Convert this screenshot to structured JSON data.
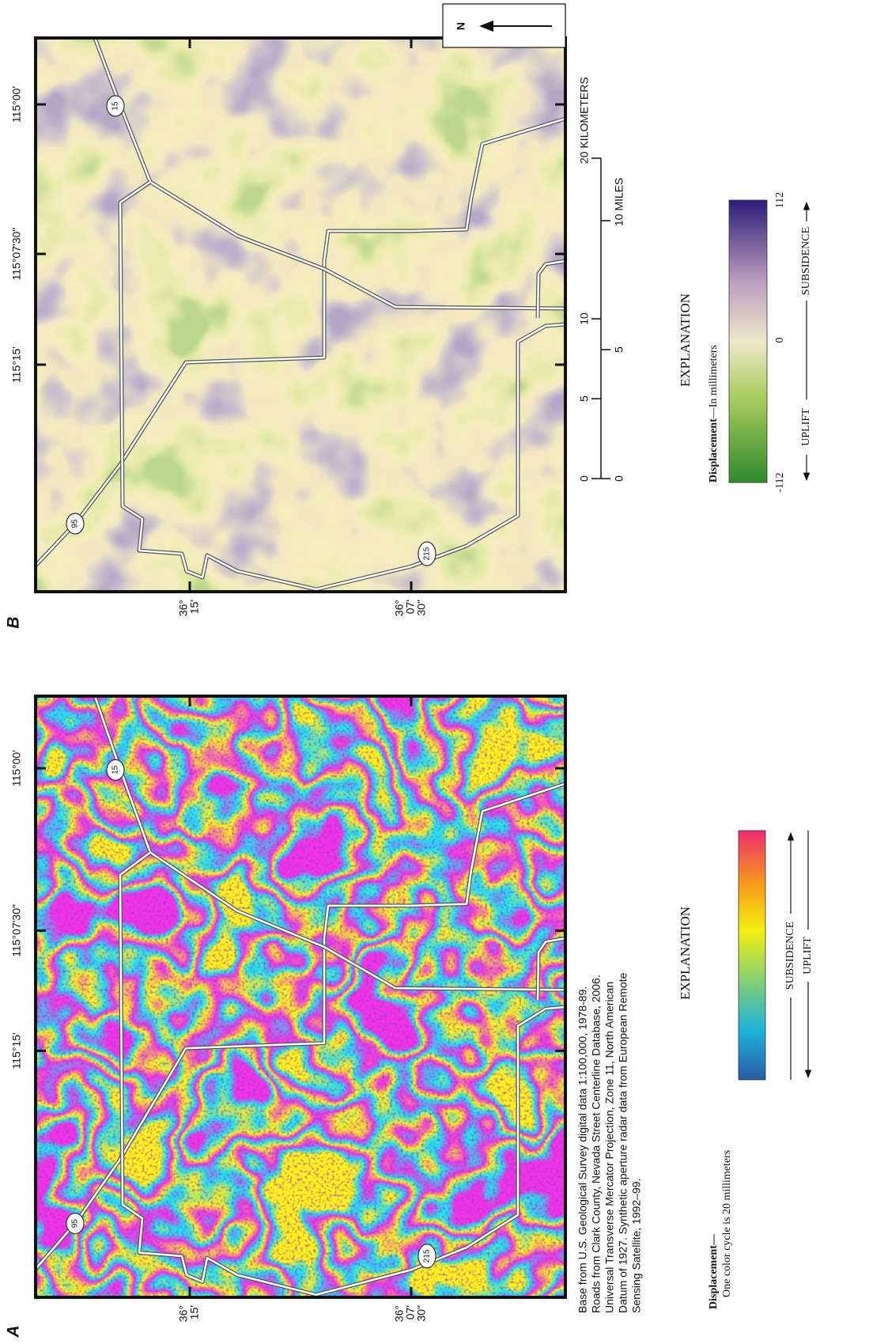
{
  "panels": [
    {
      "label": "A",
      "longitude_labels": [
        "115°15'",
        "115°07'30\"",
        "115°00'"
      ],
      "latitude_labels": [
        [
          "36°",
          "15'"
        ],
        [
          "36°",
          "07'",
          "30\""
        ]
      ],
      "route_shields": [
        "95",
        "15",
        "215"
      ]
    },
    {
      "label": "B",
      "longitude_labels": [
        "115°15'",
        "115°07'30\"",
        "115°00'"
      ],
      "latitude_labels": [
        [
          "36°",
          "15'"
        ],
        [
          "36°",
          "07'",
          "30\""
        ]
      ],
      "route_shields": [
        "95",
        "15",
        "215"
      ]
    }
  ],
  "base_note": [
    "Base from U.S. Geological Survey digital data 1:100,000, 1978-89.",
    "Roads from Clark County, Nevada Street Centerline Database, 2006.",
    "Universal Transverse Mercator Projection, Zone 11, North American",
    "Datum of 1927. Synthetic aperture radar data from European Remote",
    "Sensing Satellite, 1992–99."
  ],
  "explanation_a": {
    "title": "EXPLANATION",
    "heading": "Displacement—",
    "subheading": "One color cycle is 20 millimeters",
    "arrows": [
      "SUBSIDENCE",
      "UPLIFT"
    ]
  },
  "explanation_b": {
    "title": "EXPLANATION",
    "heading": "Displacement",
    "heading_unit": "—In millimeters",
    "scale_labels": [
      "-112",
      "0",
      "112"
    ],
    "arrows": [
      "UPLIFT",
      "SUBSIDENCE"
    ]
  },
  "scale_bar": {
    "kilometers": [
      "0",
      "5",
      "10",
      "20 KILOMETERS"
    ],
    "miles": [
      "0",
      "5",
      "10 MILES"
    ]
  },
  "north_arrow": "N"
}
